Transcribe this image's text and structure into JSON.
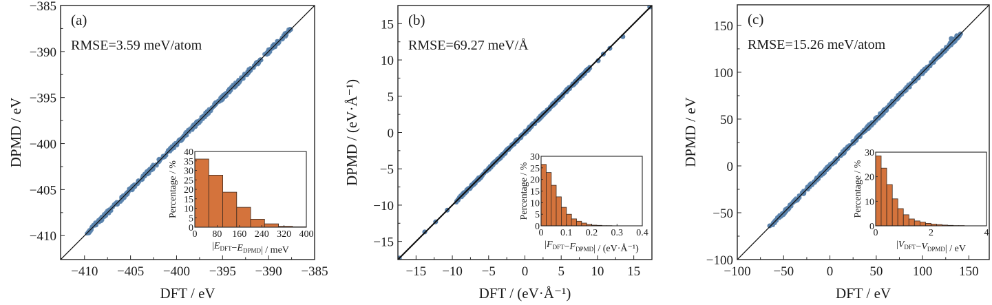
{
  "chart_data": [
    {
      "type": "scatter",
      "panel_label": "(a)",
      "annotation": "RMSE=3.59 meV/atom",
      "xlabel": "DFT / eV",
      "ylabel": "DPMD / eV",
      "xlim": [
        -412.6,
        -385
      ],
      "ylim": [
        -412.6,
        -385
      ],
      "xticks": [
        -410,
        -405,
        -400,
        -395,
        -390,
        -385
      ],
      "yticks": [
        -410,
        -405,
        -400,
        -395,
        -390,
        -385
      ],
      "tick_labels_x": [
        "−410",
        "−405",
        "−400",
        "−395",
        "−390",
        "−385"
      ],
      "tick_labels_y": [
        "−410",
        "−405",
        "−400",
        "−395",
        "−390",
        "−385"
      ],
      "reference_line": "y=x",
      "points_range": [
        -409.8,
        -387.6
      ],
      "points_spread": 0.25,
      "outliers": [
        [
          -389.4,
          -389.4
        ],
        [
          -388.1,
          -388.2
        ],
        [
          -387.6,
          -387.6
        ],
        [
          -390.9,
          -390.9
        ],
        [
          -391.3,
          -391.2
        ],
        [
          -392.2,
          -392.3
        ],
        [
          -393.5,
          -393.6
        ]
      ],
      "inset": {
        "type": "bar",
        "xlabel_parts": [
          "|",
          "E",
          "DFT",
          "−",
          "E",
          "DPMD",
          "| / meV"
        ],
        "ylabel": "Percentage / %",
        "xlim": [
          0,
          400
        ],
        "ylim": [
          0,
          40
        ],
        "xticks": [
          0,
          80,
          160,
          240,
          320,
          400
        ],
        "yticks": [
          0,
          5,
          10,
          15,
          20,
          25,
          30,
          35,
          40
        ],
        "tick_labels_x": [
          "0",
          "80",
          "160",
          "240",
          "320",
          "400"
        ],
        "tick_labels_y": [
          "0",
          "5",
          "10",
          "15",
          "20",
          "25",
          "30",
          "35",
          "40"
        ],
        "bin_width": 50,
        "bin_start": 0,
        "values": [
          36,
          27.5,
          18.5,
          10.5,
          4.2,
          1.8,
          0.5,
          0.2
        ]
      }
    },
    {
      "type": "scatter",
      "panel_label": "(b)",
      "annotation": "RMSE=69.27 meV/Å",
      "xlabel": "DFT / (eV·Å⁻¹)",
      "ylabel": "DPMD / (eV·Å⁻¹)",
      "xlim": [
        -17.5,
        17.5
      ],
      "ylim": [
        -17.5,
        17.5
      ],
      "xticks": [
        -15,
        -10,
        -5,
        0,
        5,
        10,
        15
      ],
      "yticks": [
        -15,
        -10,
        -5,
        0,
        5,
        10,
        15
      ],
      "tick_labels_x": [
        "−15",
        "−10",
        "−5",
        "0",
        "5",
        "10",
        "15"
      ],
      "tick_labels_y": [
        "−15",
        "−10",
        "−5",
        "0",
        "5",
        "10",
        "15"
      ],
      "reference_line": "y=x",
      "points_range": [
        -9.5,
        9
      ],
      "points_spread": 0.22,
      "outliers": [
        [
          -13.8,
          -13.7
        ],
        [
          -12.3,
          -12.3
        ],
        [
          -10.7,
          -10.7
        ],
        [
          10.1,
          9.9
        ],
        [
          10.8,
          10.8
        ],
        [
          11.7,
          11.6
        ],
        [
          13.5,
          13.2
        ],
        [
          17.2,
          17.3
        ],
        [
          -17.3,
          -17.3
        ]
      ],
      "inset": {
        "type": "bar",
        "xlabel_parts": [
          "|",
          "F",
          "DFT",
          "−",
          "F",
          "DPMD",
          "| / (eV·Å⁻¹)"
        ],
        "ylabel": "Percentage / %",
        "xlim": [
          0,
          0.4
        ],
        "ylim": [
          0,
          30
        ],
        "xticks": [
          0,
          0.1,
          0.2,
          0.3,
          0.4
        ],
        "yticks": [
          0,
          5,
          10,
          15,
          20,
          25,
          30
        ],
        "tick_labels_x": [
          "0",
          "0.1",
          "0.2",
          "0.3",
          "0.4"
        ],
        "tick_labels_y": [
          "0",
          "5",
          "10",
          "15",
          "20",
          "25",
          "30"
        ],
        "bin_width": 0.02,
        "bin_start": 0,
        "values": [
          26.5,
          23,
          17.5,
          12.5,
          8,
          5,
          3,
          2,
          1.2,
          0.6,
          0.3,
          0.2,
          0.1,
          0.1
        ]
      }
    },
    {
      "type": "scatter",
      "panel_label": "(c)",
      "annotation": "RMSE=15.26 meV/atom",
      "xlabel": "DFT / eV",
      "ylabel": "DPMD / eV",
      "xlim": [
        -100,
        172
      ],
      "ylim": [
        -100,
        172
      ],
      "xticks": [
        -100,
        -50,
        0,
        50,
        100,
        150
      ],
      "yticks": [
        -100,
        -50,
        0,
        50,
        100,
        150
      ],
      "tick_labels_x": [
        "−100",
        "−50",
        "0",
        "50",
        "100",
        "150"
      ],
      "tick_labels_y": [
        "−100",
        "−50",
        "0",
        "50",
        "100",
        "150"
      ],
      "reference_line": "y=x",
      "points_range": [
        -62,
        140
      ],
      "points_spread": 2.2,
      "outliers": [
        [
          -65,
          -64
        ],
        [
          131,
          136
        ],
        [
          137,
          139
        ],
        [
          141,
          141
        ]
      ],
      "inset": {
        "type": "bar",
        "xlabel_parts": [
          "|",
          "V",
          "DFT",
          "−",
          "V",
          "DPMD",
          "| / eV"
        ],
        "ylabel": "Percentage / %",
        "xlim": [
          0,
          4
        ],
        "ylim": [
          0,
          30
        ],
        "xticks": [
          0,
          2,
          4
        ],
        "yticks": [
          0,
          10,
          20,
          30
        ],
        "tick_labels_x": [
          "0",
          "2",
          "4"
        ],
        "tick_labels_y": [
          "0",
          "10",
          "20",
          "30"
        ],
        "bin_width": 0.2,
        "bin_start": 0,
        "values": [
          28.5,
          23.5,
          16.8,
          11,
          7,
          4.5,
          2.8,
          2,
          1.5,
          1,
          0.7,
          0.5,
          0.3,
          0.2,
          0.1,
          0.1
        ]
      }
    }
  ],
  "colors": {
    "scatter": "#5a83ad",
    "scatter_edge": "#4a7098",
    "bar_fill": "#d4733c",
    "bar_edge": "#3a2a20",
    "line": "#111111",
    "axis": "#222222"
  }
}
